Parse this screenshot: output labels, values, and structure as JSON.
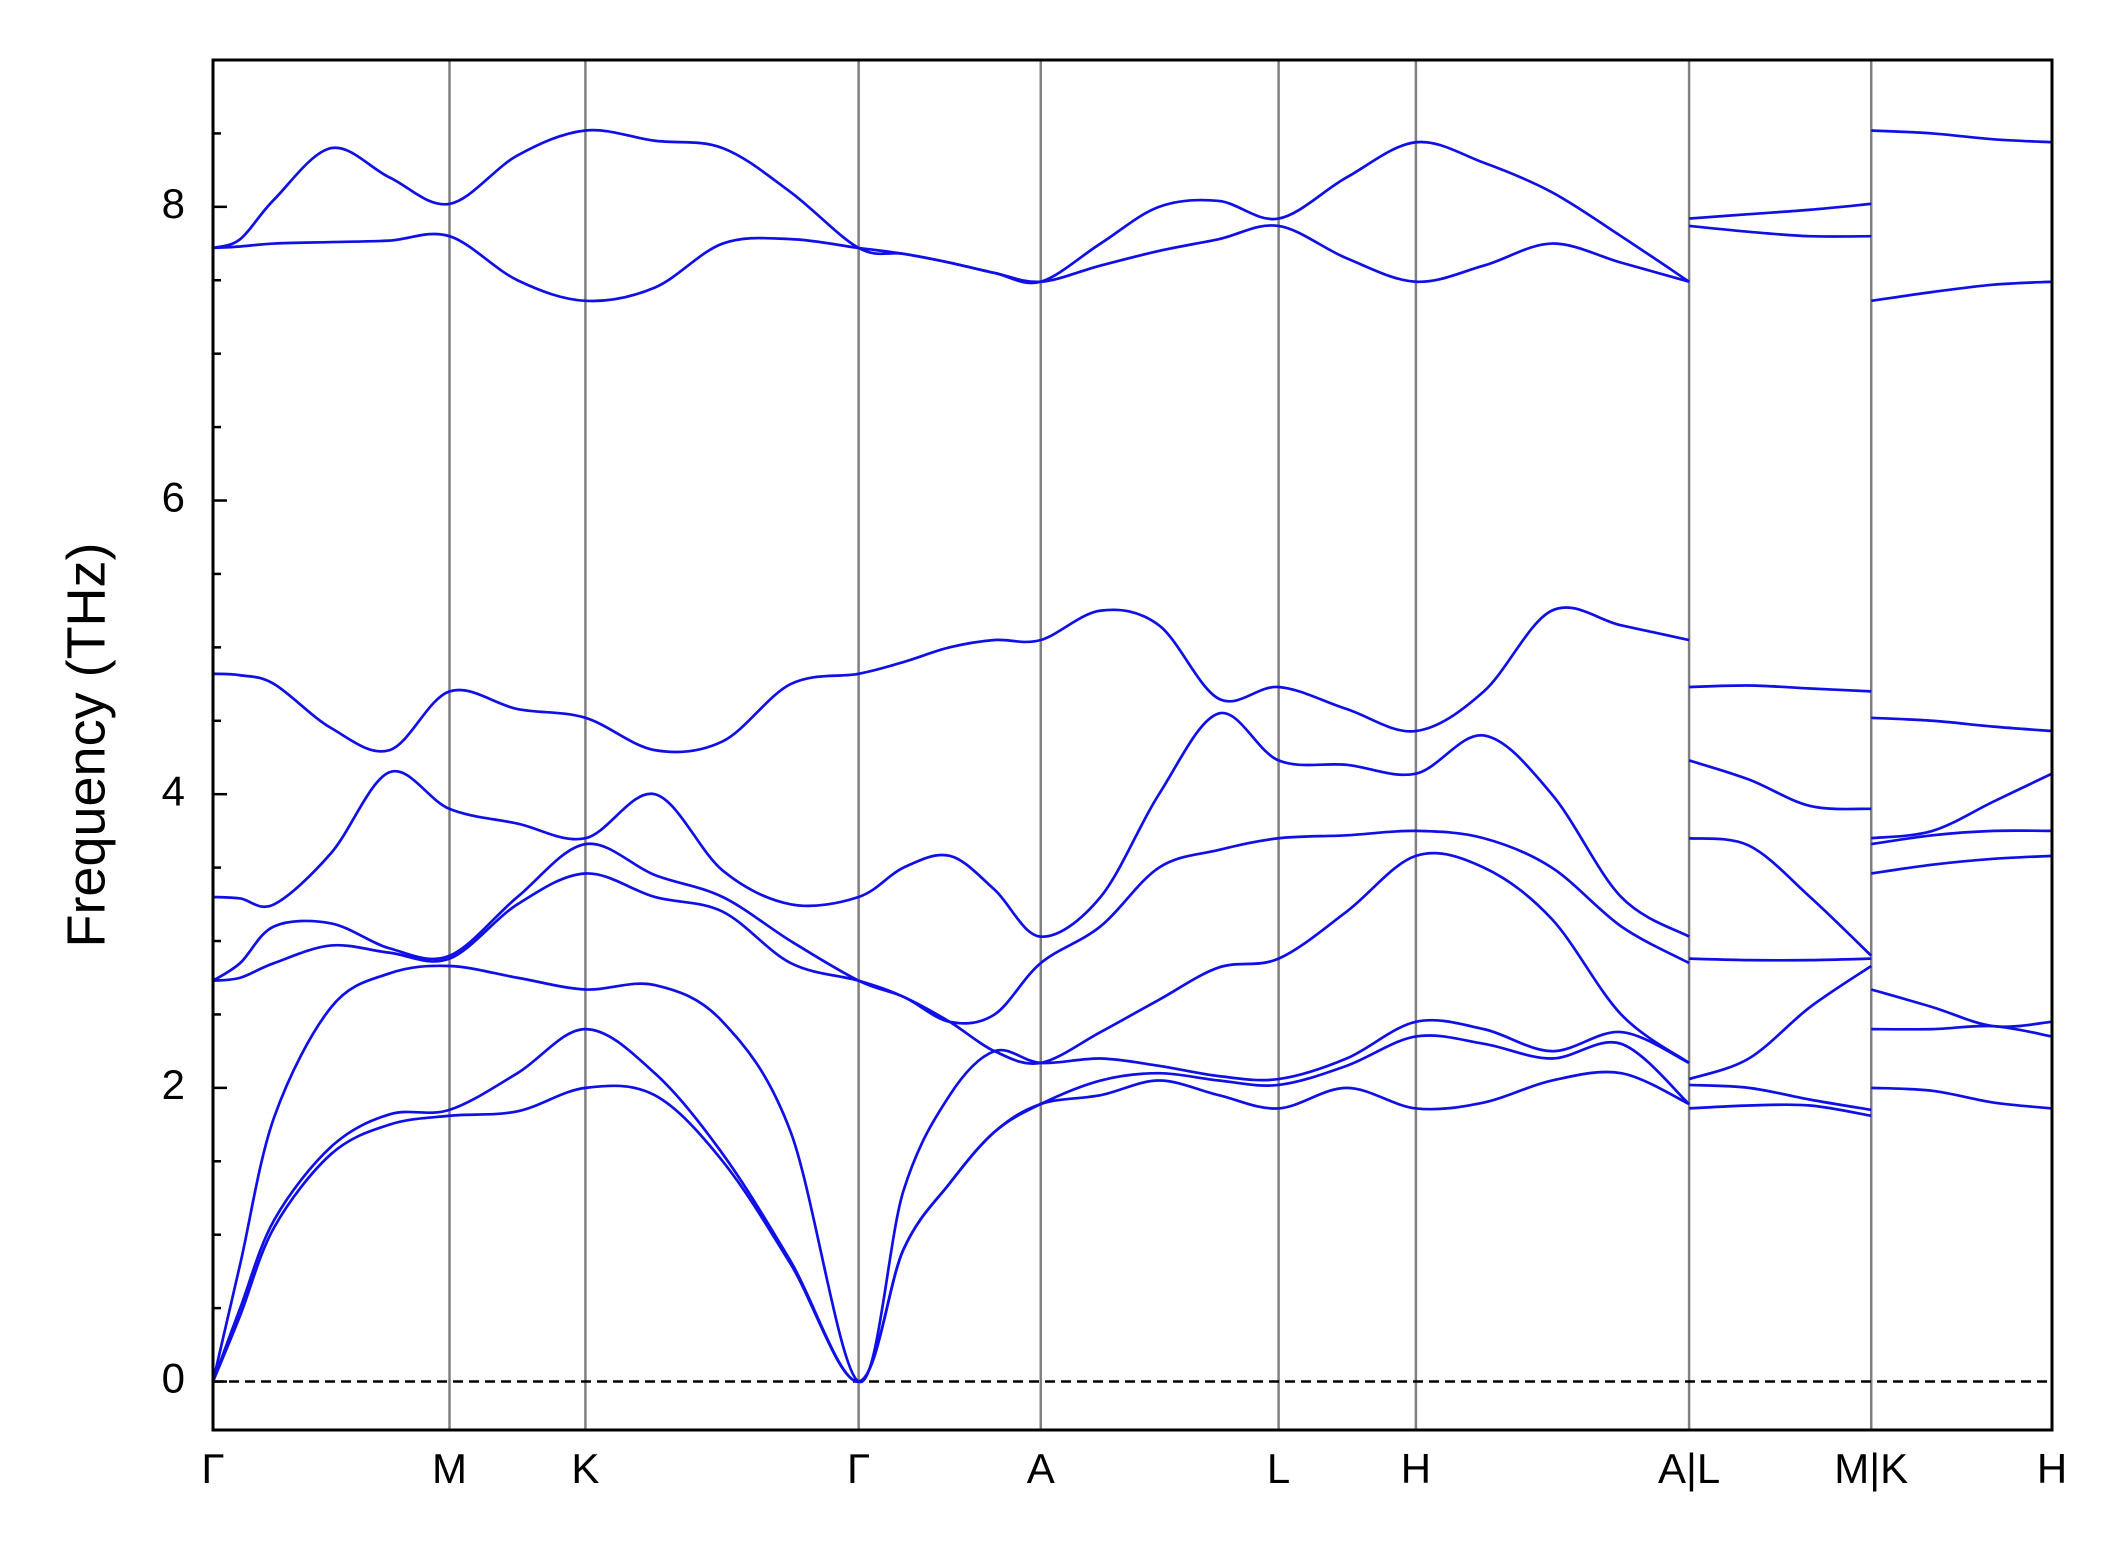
{
  "chart_data": {
    "type": "line",
    "ylabel": "Frequency (THz)",
    "x": [
      0,
      0.2,
      0.45,
      0.87,
      1.3,
      1.74,
      2.24,
      2.74,
      3.25,
      3.75,
      4.25,
      4.75,
      5.08,
      5.42,
      5.75,
      6.09,
      6.53,
      6.96,
      7.4,
      7.84,
      8.34,
      8.85,
      9.35,
      9.85,
      10.36,
      10.86,
      10.86,
      10.86,
      11.3,
      11.75,
      12.2,
      12.2,
      12.2,
      12.65,
      13.1,
      13.53
    ],
    "xlim": [
      0,
      13.53
    ],
    "xticks": [
      {
        "value": 0,
        "label": "Γ"
      },
      {
        "value": 1.74,
        "label": "M"
      },
      {
        "value": 2.74,
        "label": "K"
      },
      {
        "value": 4.75,
        "label": "Γ"
      },
      {
        "value": 6.09,
        "label": "A"
      },
      {
        "value": 7.84,
        "label": "L"
      },
      {
        "value": 8.85,
        "label": "H"
      },
      {
        "value": 10.86,
        "label": "A|L"
      },
      {
        "value": 12.2,
        "label": "M|K"
      },
      {
        "value": 13.53,
        "label": "H"
      }
    ],
    "xgrid": true,
    "xgrid_color": "#808080",
    "ylim": [
      -0.33,
      9
    ],
    "yticks": [
      0,
      2,
      4,
      6,
      8
    ],
    "yminorticks": [
      0.5,
      1,
      1.5,
      2.5,
      3,
      3.5,
      4.5,
      5,
      5.5,
      6.5,
      7,
      7.5,
      8.5
    ],
    "hline": 0,
    "series": [
      {
        "color": "#1010e6",
        "values": [
          0,
          0.45,
          1.05,
          1.55,
          1.75,
          1.81,
          1.84,
          2.0,
          1.95,
          1.5,
          0.8,
          0,
          0.9,
          1.35,
          1.7,
          1.89,
          1.95,
          2.05,
          1.95,
          1.86,
          2.0,
          1.86,
          1.9,
          2.05,
          2.1,
          1.89,
          null,
          1.86,
          1.88,
          1.88,
          1.81,
          null,
          2.0,
          1.98,
          1.9,
          1.86
        ]
      },
      {
        "color": "#1010e6",
        "values": [
          0,
          0.5,
          1.1,
          1.6,
          1.82,
          1.85,
          2.1,
          2.4,
          2.1,
          1.55,
          0.82,
          0,
          0.9,
          1.35,
          1.7,
          1.89,
          2.05,
          2.1,
          2.05,
          2.02,
          2.15,
          2.35,
          2.3,
          2.2,
          2.3,
          1.89,
          null,
          2.02,
          2.0,
          1.92,
          1.85,
          null,
          2.4,
          2.4,
          2.42,
          2.35
        ]
      },
      {
        "color": "#1010e6",
        "values": [
          0,
          0.8,
          1.8,
          2.55,
          2.78,
          2.83,
          2.75,
          2.67,
          2.7,
          2.45,
          1.7,
          0,
          1.3,
          1.95,
          2.25,
          2.17,
          2.2,
          2.15,
          2.08,
          2.06,
          2.2,
          2.45,
          2.4,
          2.25,
          2.38,
          2.17,
          null,
          2.06,
          2.2,
          2.55,
          2.83,
          null,
          2.67,
          2.55,
          2.42,
          2.45
        ]
      },
      {
        "color": "#1010e6",
        "values": [
          2.73,
          2.75,
          2.85,
          2.97,
          2.92,
          2.88,
          3.25,
          3.46,
          3.3,
          3.2,
          2.85,
          2.73,
          2.62,
          2.45,
          2.25,
          2.17,
          2.38,
          2.6,
          2.82,
          2.88,
          3.2,
          3.58,
          3.5,
          3.15,
          2.5,
          2.17,
          null,
          2.88,
          2.87,
          2.87,
          2.88,
          null,
          3.46,
          3.52,
          3.56,
          3.58
        ]
      },
      {
        "color": "#1010e6",
        "values": [
          2.73,
          2.85,
          3.1,
          3.12,
          2.95,
          2.9,
          3.3,
          3.66,
          3.45,
          3.3,
          3.0,
          2.73,
          2.62,
          2.45,
          2.5,
          2.85,
          3.1,
          3.5,
          3.62,
          3.7,
          3.72,
          3.75,
          3.7,
          3.5,
          3.1,
          2.85,
          null,
          3.7,
          3.65,
          3.3,
          2.9,
          null,
          3.66,
          3.72,
          3.75,
          3.75
        ]
      },
      {
        "color": "#1010e6",
        "values": [
          3.3,
          3.29,
          3.25,
          3.6,
          4.15,
          3.9,
          3.8,
          3.7,
          4.0,
          3.48,
          3.25,
          3.3,
          3.5,
          3.58,
          3.35,
          3.03,
          3.3,
          4.0,
          4.55,
          4.23,
          4.2,
          4.14,
          4.4,
          4.0,
          3.3,
          3.03,
          null,
          4.23,
          4.1,
          3.92,
          3.9,
          null,
          3.7,
          3.75,
          3.95,
          4.14
        ]
      },
      {
        "color": "#1010e6",
        "values": [
          4.82,
          4.81,
          4.75,
          4.45,
          4.3,
          4.7,
          4.58,
          4.52,
          4.3,
          4.36,
          4.75,
          4.82,
          4.9,
          5.0,
          5.05,
          5.05,
          5.25,
          5.15,
          4.65,
          4.73,
          4.58,
          4.43,
          4.7,
          5.25,
          5.15,
          5.05,
          null,
          4.73,
          4.74,
          4.72,
          4.7,
          null,
          4.52,
          4.5,
          4.46,
          4.43
        ]
      },
      {
        "color": "#1010e6",
        "values": [
          7.72,
          7.73,
          7.75,
          7.76,
          7.77,
          7.8,
          7.5,
          7.36,
          7.45,
          7.75,
          7.78,
          7.72,
          7.68,
          7.62,
          7.55,
          7.49,
          7.6,
          7.7,
          7.78,
          7.87,
          7.65,
          7.49,
          7.6,
          7.75,
          7.62,
          7.49,
          null,
          7.87,
          7.83,
          7.8,
          7.8,
          null,
          7.36,
          7.42,
          7.47,
          7.49
        ]
      },
      {
        "color": "#1010e6",
        "values": [
          7.72,
          7.78,
          8.05,
          8.4,
          8.2,
          8.02,
          8.35,
          8.52,
          8.45,
          8.4,
          8.1,
          7.72,
          7.68,
          7.62,
          7.55,
          7.49,
          7.75,
          8.0,
          8.04,
          7.92,
          8.2,
          8.44,
          8.3,
          8.1,
          7.8,
          7.49,
          null,
          7.92,
          7.95,
          7.98,
          8.02,
          null,
          8.52,
          8.5,
          8.46,
          8.44
        ]
      }
    ]
  }
}
